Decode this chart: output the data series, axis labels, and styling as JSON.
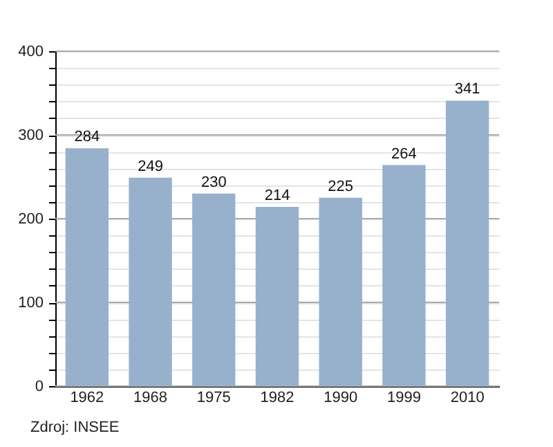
{
  "chart_data": {
    "type": "bar",
    "categories": [
      "1962",
      "1968",
      "1975",
      "1982",
      "1990",
      "1999",
      "2010"
    ],
    "values": [
      284,
      249,
      230,
      214,
      225,
      264,
      341
    ],
    "color": "#97b0cc",
    "ylim": [
      0,
      400
    ],
    "yticks": [
      0,
      {
        "value": 20,
        "label": null
      },
      {
        "value": 40,
        "label": null
      },
      {
        "value": 60,
        "label": null
      },
      {
        "value": 80,
        "label": null
      },
      100,
      {
        "value": 120,
        "label": null
      },
      {
        "value": 140,
        "label": null
      },
      {
        "value": 160,
        "label": null
      },
      {
        "value": 180,
        "label": null
      },
      200,
      {
        "value": 220,
        "label": null
      },
      {
        "value": 240,
        "label": null
      },
      {
        "value": 260,
        "label": null
      },
      {
        "value": 280,
        "label": null
      },
      300,
      {
        "value": 320,
        "label": null
      },
      {
        "value": 340,
        "label": null
      },
      {
        "value": 360,
        "label": null
      },
      {
        "value": 380,
        "label": null
      },
      400
    ],
    "grid": "y",
    "data_labels": true,
    "annotations": [
      "Zdroj: INSEE"
    ]
  }
}
